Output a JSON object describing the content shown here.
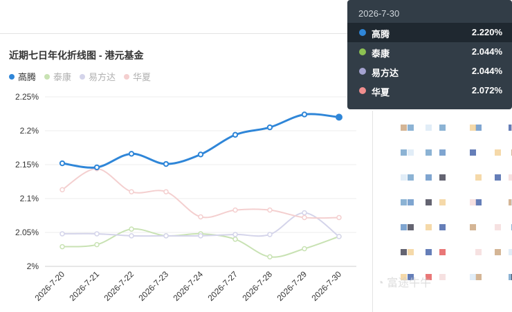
{
  "chart_data": {
    "type": "line",
    "title": "近期七日年化折线图 - 港元基金",
    "categories": [
      "2026-7-20",
      "2026-7-21",
      "2026-7-22",
      "2026-7-23",
      "2026-7-24",
      "2026-7-27",
      "2026-7-28",
      "2026-7-29",
      "2026-7-30"
    ],
    "y_ticks": [
      "2.25%",
      "2.2%",
      "2.15%",
      "2.1%",
      "2.05%",
      "2%"
    ],
    "ylim": [
      2.0,
      2.25
    ],
    "grid": true,
    "legend_position": "top-left",
    "series": [
      {
        "name": "高腾",
        "color": "#2f86d8",
        "active": true,
        "values": [
          2.152,
          2.146,
          2.166,
          2.151,
          2.165,
          2.194,
          2.205,
          2.224,
          2.22
        ]
      },
      {
        "name": "泰康",
        "color": "#c8e2b3",
        "active": false,
        "values": [
          2.029,
          2.032,
          2.055,
          2.045,
          2.048,
          2.04,
          2.014,
          2.026,
          2.044
        ]
      },
      {
        "name": "易方达",
        "color": "#d4d4ea",
        "active": false,
        "values": [
          2.048,
          2.048,
          2.045,
          2.045,
          2.045,
          2.047,
          2.047,
          2.079,
          2.044
        ]
      },
      {
        "name": "华夏",
        "color": "#f4cfcf",
        "active": false,
        "values": [
          2.113,
          2.144,
          2.11,
          2.11,
          2.073,
          2.083,
          2.083,
          2.072,
          2.072
        ]
      }
    ]
  },
  "tooltip": {
    "date": "2026-7-30",
    "rows": [
      {
        "name": "高腾",
        "value": "2.220%",
        "color": "#2f86d8"
      },
      {
        "name": "泰康",
        "value": "2.044%",
        "color": "#8cc152"
      },
      {
        "name": "易方达",
        "value": "2.044%",
        "color": "#a4a2d0"
      },
      {
        "name": "华夏",
        "value": "2.072%",
        "color": "#f08e8e"
      }
    ]
  },
  "watermark": {
    "text": "富途牛牛"
  }
}
